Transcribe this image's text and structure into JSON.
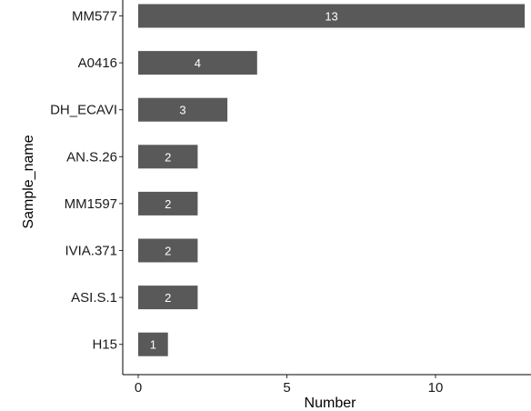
{
  "chart_data": {
    "type": "bar",
    "orientation": "horizontal",
    "categories": [
      "MM577",
      "A0416",
      "DH_ECAVI",
      "AN.S.26",
      "MM1597",
      "IVIA.371",
      "ASI.S.1",
      "H15"
    ],
    "values": [
      13,
      4,
      3,
      2,
      2,
      2,
      2,
      1
    ],
    "xlabel": "Number",
    "ylabel": "Sample_name",
    "xticks": [
      0,
      5,
      10
    ],
    "xlim": [
      0,
      13
    ],
    "grid": false,
    "bar_color": "#595959",
    "label_color": "#ffffff"
  }
}
